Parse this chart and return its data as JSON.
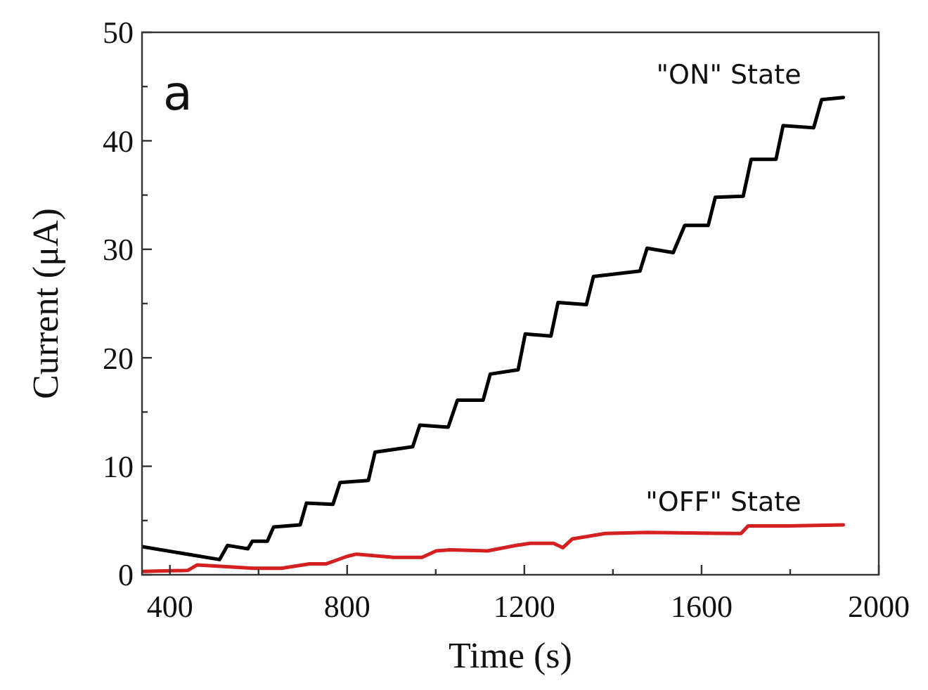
{
  "chart_data": {
    "type": "line",
    "xlabel": "Time (s)",
    "ylabel": "Current (μA)",
    "annotations": [
      "a"
    ],
    "xlim": [
      337,
      2000
    ],
    "ylim": [
      0,
      50
    ],
    "xticks": [
      400,
      {
        "value": 600,
        "label": null
      },
      800,
      {
        "value": 1000,
        "label": null
      },
      1200,
      {
        "value": 1400,
        "label": null
      },
      1600,
      {
        "value": 1800,
        "label": null
      },
      2000
    ],
    "yticks": [
      0,
      {
        "value": 5,
        "label": null
      },
      10,
      {
        "value": 15,
        "label": null
      },
      20,
      {
        "value": 25,
        "label": null
      },
      30,
      {
        "value": 35,
        "label": null
      },
      40,
      {
        "value": 45,
        "label": null
      },
      50
    ],
    "grid": false,
    "line_style": "solid",
    "marker": "none",
    "series": [
      {
        "name": "\"ON\" State",
        "color": "#000000",
        "x": [
          337,
          512,
          530,
          546,
          576,
          586,
          620,
          634,
          694,
          708,
          768,
          784,
          848,
          863,
          948,
          964,
          1028,
          1049,
          1107,
          1123,
          1186,
          1202,
          1260,
          1276,
          1340,
          1356,
          1461,
          1477,
          1536,
          1562,
          1615,
          1631,
          1694,
          1712,
          1768,
          1784,
          1853,
          1871,
          1920
        ],
        "values": [
          2.6,
          1.4,
          2.7,
          2.6,
          2.4,
          3.1,
          3.1,
          4.4,
          4.6,
          6.6,
          6.5,
          8.5,
          8.7,
          11.3,
          11.8,
          13.8,
          13.6,
          16.1,
          16.1,
          18.5,
          18.9,
          22.2,
          22.0,
          25.1,
          24.9,
          27.5,
          28.0,
          30.1,
          29.7,
          32.2,
          32.2,
          34.8,
          34.9,
          38.3,
          38.3,
          41.4,
          41.2,
          43.8,
          44.0
        ]
      },
      {
        "name": "\"OFF\" State",
        "color": "#d42020",
        "x": [
          337,
          440,
          461,
          588,
          652,
          715,
          752,
          800,
          821,
          906,
          969,
          1001,
          1033,
          1117,
          1181,
          1213,
          1266,
          1287,
          1308,
          1382,
          1477,
          1689,
          1705,
          1795,
          1920
        ],
        "values": [
          0.3,
          0.4,
          0.9,
          0.6,
          0.6,
          1.0,
          1.0,
          1.7,
          1.9,
          1.6,
          1.6,
          2.2,
          2.3,
          2.2,
          2.7,
          2.9,
          2.9,
          2.5,
          3.3,
          3.8,
          3.9,
          3.8,
          4.5,
          4.5,
          4.6
        ]
      }
    ]
  }
}
